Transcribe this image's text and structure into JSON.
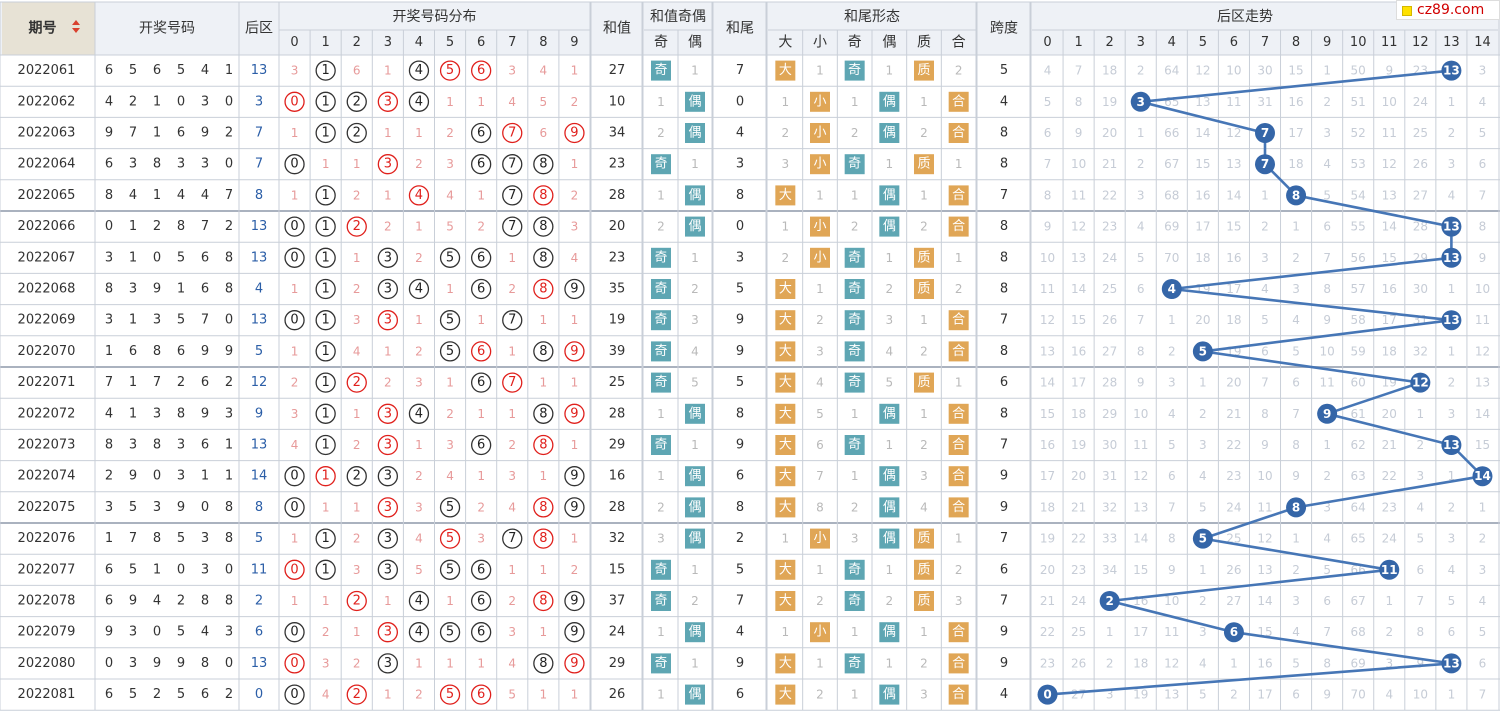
{
  "site_badge": "cz89.com",
  "header": {
    "issue": "期号",
    "winning": "开奖号码",
    "back": "后区",
    "distribution": "开奖号码分布",
    "sum": "和值",
    "sum_parity": "和值奇偶",
    "sum_parity_odd": "奇",
    "sum_parity_even": "偶",
    "tail": "和尾",
    "tail_form": "和尾形态",
    "tail_big": "大",
    "tail_small": "小",
    "tail_odd": "奇",
    "tail_even": "偶",
    "tail_prime": "质",
    "tail_composite": "合",
    "span": "跨度",
    "trend": "后区走势",
    "dist_digits": [
      "0",
      "1",
      "2",
      "3",
      "4",
      "5",
      "6",
      "7",
      "8",
      "9"
    ],
    "trend_digits": [
      "0",
      "1",
      "2",
      "3",
      "4",
      "5",
      "6",
      "7",
      "8",
      "9",
      "10",
      "11",
      "12",
      "13",
      "14"
    ]
  },
  "labels": {
    "odd": "奇",
    "even": "偶",
    "big": "大",
    "small": "小",
    "prime": "质",
    "composite": "合"
  },
  "colors": {
    "header_bg": "#eef1f6",
    "issue_header_bg": "#e7e2d5",
    "border": "#c9cfd8",
    "ball_black": "#333333",
    "ball_red": "#e0201c",
    "miss_text": "#e79a9a",
    "trend_ball": "#3566a8",
    "trend_line": "#4676b6",
    "trend_miss": "#c6ccd6",
    "box_teal": "#5ea6b3",
    "box_orange": "#e0a656",
    "back_blue": "#2b5ea7",
    "text": "#333333"
  },
  "rows": [
    {
      "issue": "2022061",
      "nums": [
        6,
        5,
        6,
        5,
        4,
        1
      ],
      "back": 13,
      "dist": [
        "3",
        "C1",
        "6",
        "1",
        "C4",
        "R5",
        "R6",
        "3",
        "4",
        "1"
      ],
      "sum": 27,
      "p_odd": "奇",
      "p_even": "1",
      "tail": 7,
      "t_big": "大",
      "t_small": "1",
      "t_odd": "奇",
      "t_even": "1",
      "t_prime": "质",
      "t_comp": "2",
      "span": 5,
      "trend": [
        "4",
        "7",
        "18",
        "2",
        "64",
        "12",
        "10",
        "30",
        "15",
        "1",
        "50",
        "9",
        "23",
        "*",
        "3"
      ]
    },
    {
      "issue": "2022062",
      "nums": [
        4,
        2,
        1,
        0,
        3,
        0
      ],
      "back": 3,
      "dist": [
        "R0",
        "C1",
        "C2",
        "R3",
        "C4",
        "1",
        "1",
        "4",
        "5",
        "2"
      ],
      "sum": 10,
      "p_odd": "1",
      "p_even": "偶",
      "tail": 0,
      "t_big": "1",
      "t_small": "小",
      "t_odd": "1",
      "t_even": "偶",
      "t_prime": "1",
      "t_comp": "合",
      "span": 4,
      "trend": [
        "5",
        "8",
        "19",
        "*",
        "65",
        "13",
        "11",
        "31",
        "16",
        "2",
        "51",
        "10",
        "24",
        "1",
        "4"
      ]
    },
    {
      "issue": "2022063",
      "nums": [
        9,
        7,
        1,
        6,
        9,
        2
      ],
      "back": 7,
      "dist": [
        "1",
        "C1",
        "C2",
        "1",
        "1",
        "2",
        "C6",
        "R7",
        "6",
        "R9"
      ],
      "sum": 34,
      "p_odd": "2",
      "p_even": "偶",
      "tail": 4,
      "t_big": "2",
      "t_small": "小",
      "t_odd": "2",
      "t_even": "偶",
      "t_prime": "2",
      "t_comp": "合",
      "span": 8,
      "trend": [
        "6",
        "9",
        "20",
        "1",
        "66",
        "14",
        "12",
        "*",
        "17",
        "3",
        "52",
        "11",
        "25",
        "2",
        "5"
      ]
    },
    {
      "issue": "2022064",
      "nums": [
        6,
        3,
        8,
        3,
        3,
        0
      ],
      "back": 7,
      "dist": [
        "C0",
        "1",
        "1",
        "R3",
        "2",
        "3",
        "C6",
        "C7",
        "C8",
        "1"
      ],
      "sum": 23,
      "p_odd": "奇",
      "p_even": "1",
      "tail": 3,
      "t_big": "3",
      "t_small": "小",
      "t_odd": "奇",
      "t_even": "1",
      "t_prime": "质",
      "t_comp": "1",
      "span": 8,
      "trend": [
        "7",
        "10",
        "21",
        "2",
        "67",
        "15",
        "13",
        "*",
        "18",
        "4",
        "53",
        "12",
        "26",
        "3",
        "6"
      ]
    },
    {
      "issue": "2022065",
      "nums": [
        8,
        4,
        1,
        4,
        4,
        7
      ],
      "back": 8,
      "dist": [
        "1",
        "C1",
        "2",
        "1",
        "R4",
        "4",
        "1",
        "C7",
        "R8",
        "2"
      ],
      "sum": 28,
      "p_odd": "1",
      "p_even": "偶",
      "tail": 8,
      "t_big": "大",
      "t_small": "1",
      "t_odd": "1",
      "t_even": "偶",
      "t_prime": "1",
      "t_comp": "合",
      "span": 7,
      "trend": [
        "8",
        "11",
        "22",
        "3",
        "68",
        "16",
        "14",
        "1",
        "*",
        "5",
        "54",
        "13",
        "27",
        "4",
        "7"
      ]
    },
    {
      "issue": "2022066",
      "nums": [
        0,
        1,
        2,
        8,
        7,
        2
      ],
      "back": 13,
      "dist": [
        "C0",
        "C1",
        "R2",
        "2",
        "1",
        "5",
        "2",
        "C7",
        "C8",
        "3"
      ],
      "sum": 20,
      "p_odd": "2",
      "p_even": "偶",
      "tail": 0,
      "t_big": "1",
      "t_small": "小",
      "t_odd": "2",
      "t_even": "偶",
      "t_prime": "2",
      "t_comp": "合",
      "span": 8,
      "trend": [
        "9",
        "12",
        "23",
        "4",
        "69",
        "17",
        "15",
        "2",
        "1",
        "6",
        "55",
        "14",
        "28",
        "*",
        "8"
      ]
    },
    {
      "issue": "2022067",
      "nums": [
        3,
        1,
        0,
        5,
        6,
        8
      ],
      "back": 13,
      "dist": [
        "C0",
        "C1",
        "1",
        "C3",
        "2",
        "C5",
        "C6",
        "1",
        "C8",
        "4"
      ],
      "sum": 23,
      "p_odd": "奇",
      "p_even": "1",
      "tail": 3,
      "t_big": "2",
      "t_small": "小",
      "t_odd": "奇",
      "t_even": "1",
      "t_prime": "质",
      "t_comp": "1",
      "span": 8,
      "trend": [
        "10",
        "13",
        "24",
        "5",
        "70",
        "18",
        "16",
        "3",
        "2",
        "7",
        "56",
        "15",
        "29",
        "*",
        "9"
      ]
    },
    {
      "issue": "2022068",
      "nums": [
        8,
        3,
        9,
        1,
        6,
        8
      ],
      "back": 4,
      "dist": [
        "1",
        "C1",
        "2",
        "C3",
        "C4",
        "1",
        "C6",
        "2",
        "R8",
        "C9"
      ],
      "sum": 35,
      "p_odd": "奇",
      "p_even": "2",
      "tail": 5,
      "t_big": "大",
      "t_small": "1",
      "t_odd": "奇",
      "t_even": "2",
      "t_prime": "质",
      "t_comp": "2",
      "span": 8,
      "trend": [
        "11",
        "14",
        "25",
        "6",
        "*",
        "19",
        "17",
        "4",
        "3",
        "8",
        "57",
        "16",
        "30",
        "1",
        "10"
      ]
    },
    {
      "issue": "2022069",
      "nums": [
        3,
        1,
        3,
        5,
        7,
        0
      ],
      "back": 13,
      "dist": [
        "C0",
        "C1",
        "3",
        "R3",
        "1",
        "C5",
        "1",
        "C7",
        "1",
        "1"
      ],
      "sum": 19,
      "p_odd": "奇",
      "p_even": "3",
      "tail": 9,
      "t_big": "大",
      "t_small": "2",
      "t_odd": "奇",
      "t_even": "3",
      "t_prime": "1",
      "t_comp": "合",
      "span": 7,
      "trend": [
        "12",
        "15",
        "26",
        "7",
        "1",
        "20",
        "18",
        "5",
        "4",
        "9",
        "58",
        "17",
        "31",
        "*",
        "11"
      ]
    },
    {
      "issue": "2022070",
      "nums": [
        1,
        6,
        8,
        6,
        9,
        9
      ],
      "back": 5,
      "dist": [
        "1",
        "C1",
        "4",
        "1",
        "2",
        "C5",
        "R6",
        "1",
        "C8",
        "R9"
      ],
      "sum": 39,
      "p_odd": "奇",
      "p_even": "4",
      "tail": 9,
      "t_big": "大",
      "t_small": "3",
      "t_odd": "奇",
      "t_even": "4",
      "t_prime": "2",
      "t_comp": "合",
      "span": 8,
      "trend": [
        "13",
        "16",
        "27",
        "8",
        "2",
        "*",
        "19",
        "6",
        "5",
        "10",
        "59",
        "18",
        "32",
        "1",
        "12"
      ]
    },
    {
      "issue": "2022071",
      "nums": [
        7,
        1,
        7,
        2,
        6,
        2
      ],
      "back": 12,
      "dist": [
        "2",
        "C1",
        "R2",
        "2",
        "3",
        "1",
        "C6",
        "R7",
        "1",
        "1"
      ],
      "sum": 25,
      "p_odd": "奇",
      "p_even": "5",
      "tail": 5,
      "t_big": "大",
      "t_small": "4",
      "t_odd": "奇",
      "t_even": "5",
      "t_prime": "质",
      "t_comp": "1",
      "span": 6,
      "trend": [
        "14",
        "17",
        "28",
        "9",
        "3",
        "1",
        "20",
        "7",
        "6",
        "11",
        "60",
        "19",
        "*",
        "2",
        "13"
      ]
    },
    {
      "issue": "2022072",
      "nums": [
        4,
        1,
        3,
        8,
        9,
        3
      ],
      "back": 9,
      "dist": [
        "3",
        "C1",
        "1",
        "R3",
        "C4",
        "2",
        "1",
        "1",
        "C8",
        "R9"
      ],
      "sum": 28,
      "p_odd": "1",
      "p_even": "偶",
      "tail": 8,
      "t_big": "大",
      "t_small": "5",
      "t_odd": "1",
      "t_even": "偶",
      "t_prime": "1",
      "t_comp": "合",
      "span": 8,
      "trend": [
        "15",
        "18",
        "29",
        "10",
        "4",
        "2",
        "21",
        "8",
        "7",
        "*",
        "61",
        "20",
        "1",
        "3",
        "14"
      ]
    },
    {
      "issue": "2022073",
      "nums": [
        8,
        3,
        8,
        3,
        6,
        1
      ],
      "back": 13,
      "dist": [
        "4",
        "C1",
        "2",
        "R3",
        "1",
        "3",
        "C6",
        "2",
        "R8",
        "1"
      ],
      "sum": 29,
      "p_odd": "奇",
      "p_even": "1",
      "tail": 9,
      "t_big": "大",
      "t_small": "6",
      "t_odd": "奇",
      "t_even": "1",
      "t_prime": "2",
      "t_comp": "合",
      "span": 7,
      "trend": [
        "16",
        "19",
        "30",
        "11",
        "5",
        "3",
        "22",
        "9",
        "8",
        "1",
        "62",
        "21",
        "2",
        "*",
        "15"
      ]
    },
    {
      "issue": "2022074",
      "nums": [
        2,
        9,
        0,
        3,
        1,
        1
      ],
      "back": 14,
      "dist": [
        "C0",
        "R1",
        "C2",
        "C3",
        "2",
        "4",
        "1",
        "3",
        "1",
        "C9"
      ],
      "sum": 16,
      "p_odd": "1",
      "p_even": "偶",
      "tail": 6,
      "t_big": "大",
      "t_small": "7",
      "t_odd": "1",
      "t_even": "偶",
      "t_prime": "3",
      "t_comp": "合",
      "span": 9,
      "trend": [
        "17",
        "20",
        "31",
        "12",
        "6",
        "4",
        "23",
        "10",
        "9",
        "2",
        "63",
        "22",
        "3",
        "1",
        "*"
      ]
    },
    {
      "issue": "2022075",
      "nums": [
        3,
        5,
        3,
        9,
        0,
        8
      ],
      "back": 8,
      "dist": [
        "C0",
        "1",
        "1",
        "R3",
        "3",
        "C5",
        "2",
        "4",
        "R8",
        "C9"
      ],
      "sum": 28,
      "p_odd": "2",
      "p_even": "偶",
      "tail": 8,
      "t_big": "大",
      "t_small": "8",
      "t_odd": "2",
      "t_even": "偶",
      "t_prime": "4",
      "t_comp": "合",
      "span": 9,
      "trend": [
        "18",
        "21",
        "32",
        "13",
        "7",
        "5",
        "24",
        "11",
        "*",
        "3",
        "64",
        "23",
        "4",
        "2",
        "1"
      ]
    },
    {
      "issue": "2022076",
      "nums": [
        1,
        7,
        8,
        5,
        3,
        8
      ],
      "back": 5,
      "dist": [
        "1",
        "C1",
        "2",
        "C3",
        "4",
        "R5",
        "3",
        "C7",
        "R8",
        "1"
      ],
      "sum": 32,
      "p_odd": "3",
      "p_even": "偶",
      "tail": 2,
      "t_big": "1",
      "t_small": "小",
      "t_odd": "3",
      "t_even": "偶",
      "t_prime": "质",
      "t_comp": "1",
      "span": 7,
      "trend": [
        "19",
        "22",
        "33",
        "14",
        "8",
        "*",
        "25",
        "12",
        "1",
        "4",
        "65",
        "24",
        "5",
        "3",
        "2"
      ]
    },
    {
      "issue": "2022077",
      "nums": [
        6,
        5,
        1,
        0,
        3,
        0
      ],
      "back": 11,
      "dist": [
        "R0",
        "C1",
        "3",
        "C3",
        "5",
        "C5",
        "C6",
        "1",
        "1",
        "2"
      ],
      "sum": 15,
      "p_odd": "奇",
      "p_even": "1",
      "tail": 5,
      "t_big": "大",
      "t_small": "1",
      "t_odd": "奇",
      "t_even": "1",
      "t_prime": "质",
      "t_comp": "2",
      "span": 6,
      "trend": [
        "20",
        "23",
        "34",
        "15",
        "9",
        "1",
        "26",
        "13",
        "2",
        "5",
        "66",
        "*",
        "6",
        "4",
        "3"
      ]
    },
    {
      "issue": "2022078",
      "nums": [
        6,
        9,
        4,
        2,
        8,
        8
      ],
      "back": 2,
      "dist": [
        "1",
        "1",
        "R2",
        "1",
        "C4",
        "1",
        "C6",
        "2",
        "R8",
        "C9"
      ],
      "sum": 37,
      "p_odd": "奇",
      "p_even": "2",
      "tail": 7,
      "t_big": "大",
      "t_small": "2",
      "t_odd": "奇",
      "t_even": "2",
      "t_prime": "质",
      "t_comp": "3",
      "span": 7,
      "trend": [
        "21",
        "24",
        "*",
        "16",
        "10",
        "2",
        "27",
        "14",
        "3",
        "6",
        "67",
        "1",
        "7",
        "5",
        "4"
      ]
    },
    {
      "issue": "2022079",
      "nums": [
        9,
        3,
        0,
        5,
        4,
        3
      ],
      "back": 6,
      "dist": [
        "C0",
        "2",
        "1",
        "R3",
        "C4",
        "C5",
        "C6",
        "3",
        "1",
        "C9"
      ],
      "sum": 24,
      "p_odd": "1",
      "p_even": "偶",
      "tail": 4,
      "t_big": "1",
      "t_small": "小",
      "t_odd": "1",
      "t_even": "偶",
      "t_prime": "1",
      "t_comp": "合",
      "span": 9,
      "trend": [
        "22",
        "25",
        "1",
        "17",
        "11",
        "3",
        "*",
        "15",
        "4",
        "7",
        "68",
        "2",
        "8",
        "6",
        "5"
      ]
    },
    {
      "issue": "2022080",
      "nums": [
        0,
        3,
        9,
        9,
        8,
        0
      ],
      "back": 13,
      "dist": [
        "R0",
        "3",
        "2",
        "C3",
        "1",
        "1",
        "1",
        "4",
        "C8",
        "R9"
      ],
      "sum": 29,
      "p_odd": "奇",
      "p_even": "1",
      "tail": 9,
      "t_big": "大",
      "t_small": "1",
      "t_odd": "奇",
      "t_even": "1",
      "t_prime": "2",
      "t_comp": "合",
      "span": 9,
      "trend": [
        "23",
        "26",
        "2",
        "18",
        "12",
        "4",
        "1",
        "16",
        "5",
        "8",
        "69",
        "3",
        "9",
        "*",
        "6"
      ]
    },
    {
      "issue": "2022081",
      "nums": [
        6,
        5,
        2,
        5,
        6,
        2
      ],
      "back": 0,
      "dist": [
        "C0",
        "4",
        "R2",
        "1",
        "2",
        "R5",
        "R6",
        "5",
        "1",
        "1"
      ],
      "sum": 26,
      "p_odd": "1",
      "p_even": "偶",
      "tail": 6,
      "t_big": "大",
      "t_small": "2",
      "t_odd": "1",
      "t_even": "偶",
      "t_prime": "3",
      "t_comp": "合",
      "span": 4,
      "trend": [
        "*",
        "27",
        "3",
        "19",
        "13",
        "5",
        "2",
        "17",
        "6",
        "9",
        "70",
        "4",
        "10",
        "1",
        "7"
      ]
    }
  ]
}
